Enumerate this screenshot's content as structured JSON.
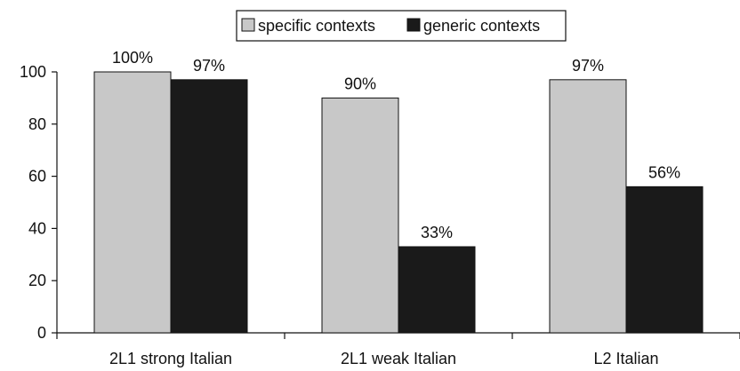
{
  "chart_data": {
    "type": "bar",
    "title": "",
    "xlabel": "",
    "ylabel": "",
    "categories": [
      "2L1 strong Italian",
      "2L1 weak Italian",
      "L2 Italian"
    ],
    "series": [
      {
        "name": "specific contexts",
        "values": [
          100,
          90,
          97
        ],
        "labels": [
          "100%",
          "90%",
          "97%"
        ],
        "color": "#c8c8c8"
      },
      {
        "name": "generic contexts",
        "values": [
          97,
          33,
          56
        ],
        "labels": [
          "97%",
          "33%",
          "56%"
        ],
        "color": "#1a1a1a"
      }
    ],
    "ylim": [
      0,
      100
    ],
    "yticks": [
      0,
      20,
      40,
      60,
      80,
      100
    ],
    "grid": false,
    "legend_position": "top-center"
  }
}
